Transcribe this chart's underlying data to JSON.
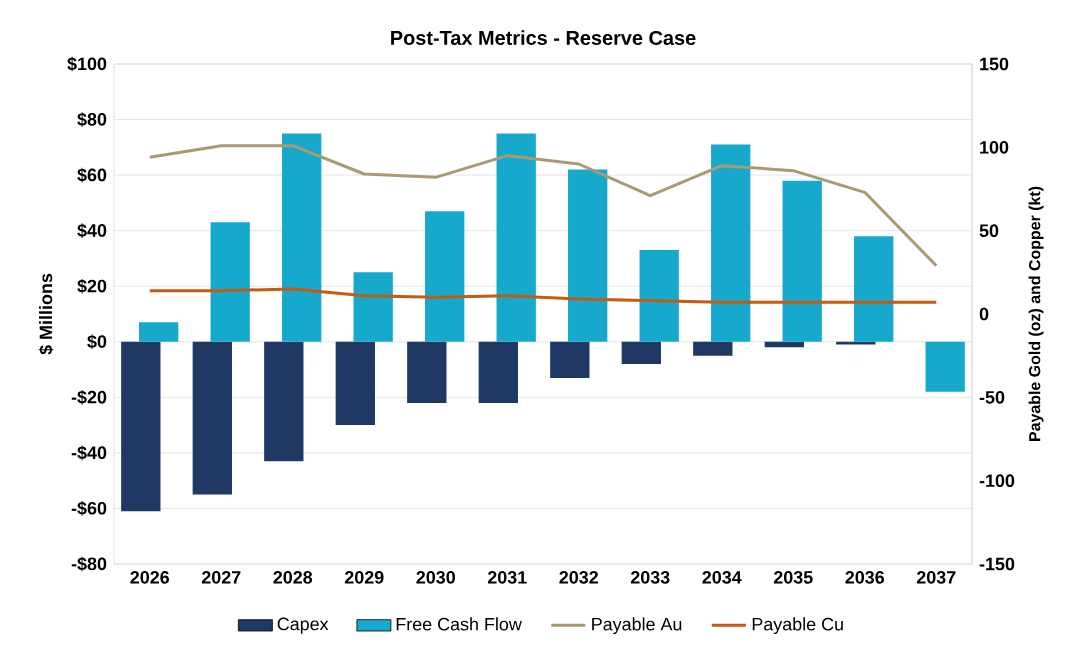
{
  "chart_data": {
    "type": "bar",
    "title": "Post-Tax Metrics - Reserve Case",
    "ylabel": "$ Millions",
    "y2label": "Payable Gold (oz) and Copper (kt)",
    "categories": [
      "2026",
      "2027",
      "2028",
      "2029",
      "2030",
      "2031",
      "2032",
      "2033",
      "2034",
      "2035",
      "2036",
      "2037"
    ],
    "series": [
      {
        "name": "Capex",
        "color": "#1f3864",
        "values": [
          -61,
          -55,
          -43,
          -30,
          -22,
          -22,
          -13,
          -8,
          -5,
          -2,
          -1,
          null
        ]
      },
      {
        "name": "Free Cash Flow",
        "color": "#17a9cc",
        "values": [
          7,
          43,
          75,
          25,
          47,
          75,
          62,
          33,
          71,
          58,
          38,
          -18
        ]
      },
      {
        "name": "Payable Au",
        "type": "line",
        "axis": "y2",
        "color": "#a89a72",
        "values": [
          94,
          101,
          101,
          84,
          82,
          95,
          90,
          71,
          89,
          86,
          73,
          29
        ]
      },
      {
        "name": "Payable Cu",
        "type": "line",
        "axis": "y2",
        "color": "#c55a11",
        "values": [
          14,
          14,
          15,
          11,
          10,
          11,
          9,
          8,
          7,
          7,
          7,
          7
        ]
      }
    ],
    "ylim": [
      -80,
      100
    ],
    "yticks": [
      {
        "value": -80,
        "label": "-$80"
      },
      {
        "value": -60,
        "label": "-$60"
      },
      {
        "value": -40,
        "label": "-$40"
      },
      {
        "value": -20,
        "label": "-$20"
      },
      {
        "value": 0,
        "label": "$0"
      },
      {
        "value": 20,
        "label": "$20"
      },
      {
        "value": 40,
        "label": "$40"
      },
      {
        "value": 60,
        "label": "$60"
      },
      {
        "value": 80,
        "label": "$80"
      },
      {
        "value": 100,
        "label": "$100"
      }
    ],
    "y2lim": [
      -150,
      150
    ],
    "y2ticks": [
      -150,
      -100,
      -50,
      0,
      50,
      100,
      150
    ],
    "grid": "y",
    "legend": "bottom",
    "marker": "none",
    "line_style": "solid"
  }
}
